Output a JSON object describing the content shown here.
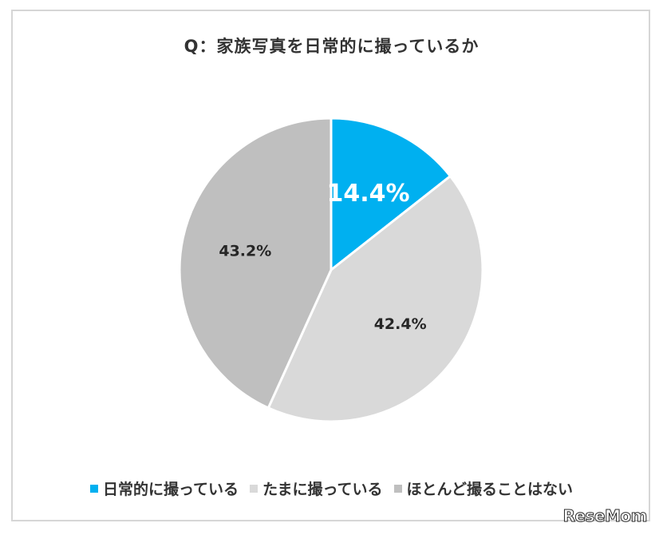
{
  "chart_data": {
    "type": "pie",
    "title": "Q：家族写真を日常的に撮っているか",
    "categories": [
      "日常的に撮っている",
      "たまに撮っている",
      "ほとんど撮ることはない"
    ],
    "values": [
      14.4,
      42.4,
      43.2
    ],
    "value_labels": [
      "14.4%",
      "42.4%",
      "43.2%"
    ],
    "colors": [
      "#00b0f0",
      "#d9d9d9",
      "#bfbfbf"
    ],
    "label_colors": [
      "#ffffff",
      "#262626",
      "#262626"
    ],
    "legend_position": "bottom"
  },
  "watermark": "ReseMom"
}
